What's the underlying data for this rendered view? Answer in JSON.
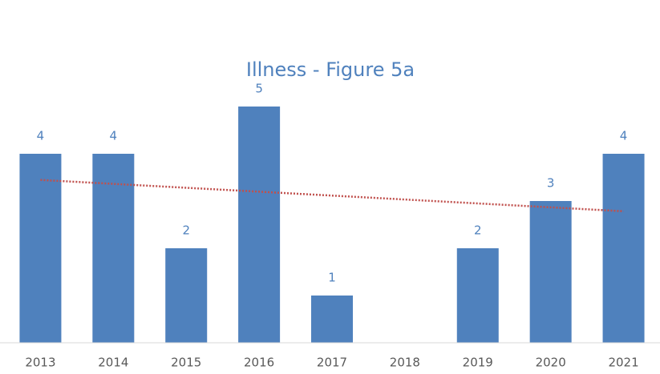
{
  "chart_data": {
    "type": "bar",
    "title": "Illness - Figure 5a",
    "categories": [
      "2013",
      "2014",
      "2015",
      "2016",
      "2017",
      "2018",
      "2019",
      "2020",
      "2021"
    ],
    "values": [
      4,
      4,
      2,
      5,
      1,
      null,
      2,
      3,
      4
    ],
    "color": "#4f81bd",
    "ylim": [
      0,
      5
    ],
    "trendline": {
      "type": "linear",
      "color": "#c0504d"
    }
  }
}
